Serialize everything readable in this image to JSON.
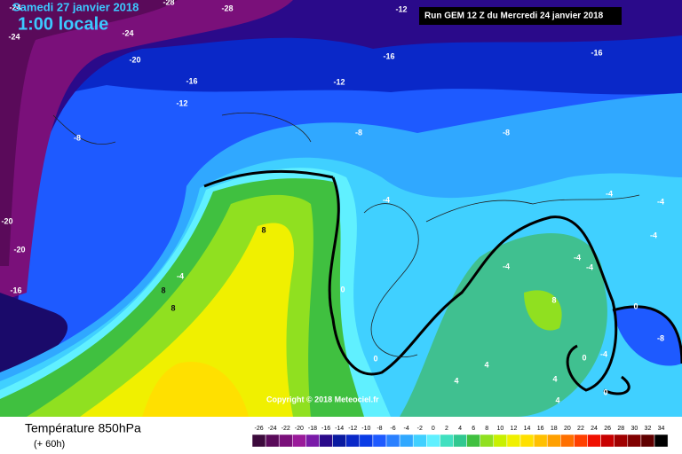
{
  "header": {
    "date": "Samedi 27 janvier 2018",
    "time": "1:00 locale",
    "run": "Run GEM 12 Z du Mercredi 24 janvier 2018"
  },
  "map": {
    "contour_labels": [
      -24,
      -28,
      -28,
      -24,
      -24,
      -12,
      -16,
      -20,
      -16,
      -16,
      -12,
      -12,
      -8,
      -8,
      -8,
      -4,
      -4,
      -4,
      -4,
      -20,
      -20,
      -16,
      8,
      -4,
      8,
      8,
      0,
      -4,
      -4,
      0,
      -8,
      8,
      -4,
      0,
      4,
      4,
      4,
      0,
      0,
      4,
      -4
    ],
    "copyright": "Copyright © 2018 Meteociel.fr"
  },
  "footer": {
    "title": "Température 850hPa",
    "subtitle": "(+ 60h)"
  },
  "scale": {
    "values": [
      -26,
      -24,
      -22,
      -20,
      -18,
      -16,
      -14,
      -12,
      -10,
      -8,
      -6,
      -4,
      -2,
      0,
      2,
      4,
      6,
      8,
      10,
      12,
      14,
      16,
      18,
      20,
      22,
      24,
      26,
      28,
      30,
      32,
      34
    ],
    "colors": [
      "#3c0a3c",
      "#5a0a5a",
      "#7a107a",
      "#9a1a9a",
      "#7a1aa8",
      "#2a0a8a",
      "#0a1aa0",
      "#0a28c8",
      "#0a3ce6",
      "#1e5aff",
      "#2a80ff",
      "#30a8ff",
      "#40d0ff",
      "#60f0ff",
      "#40e0c0",
      "#30c890",
      "#40c040",
      "#90e020",
      "#c8f000",
      "#f0f000",
      "#ffe000",
      "#ffc000",
      "#ffa000",
      "#ff7000",
      "#ff4000",
      "#f01000",
      "#c80000",
      "#a00000",
      "#800000",
      "#600000",
      "#000000"
    ]
  }
}
